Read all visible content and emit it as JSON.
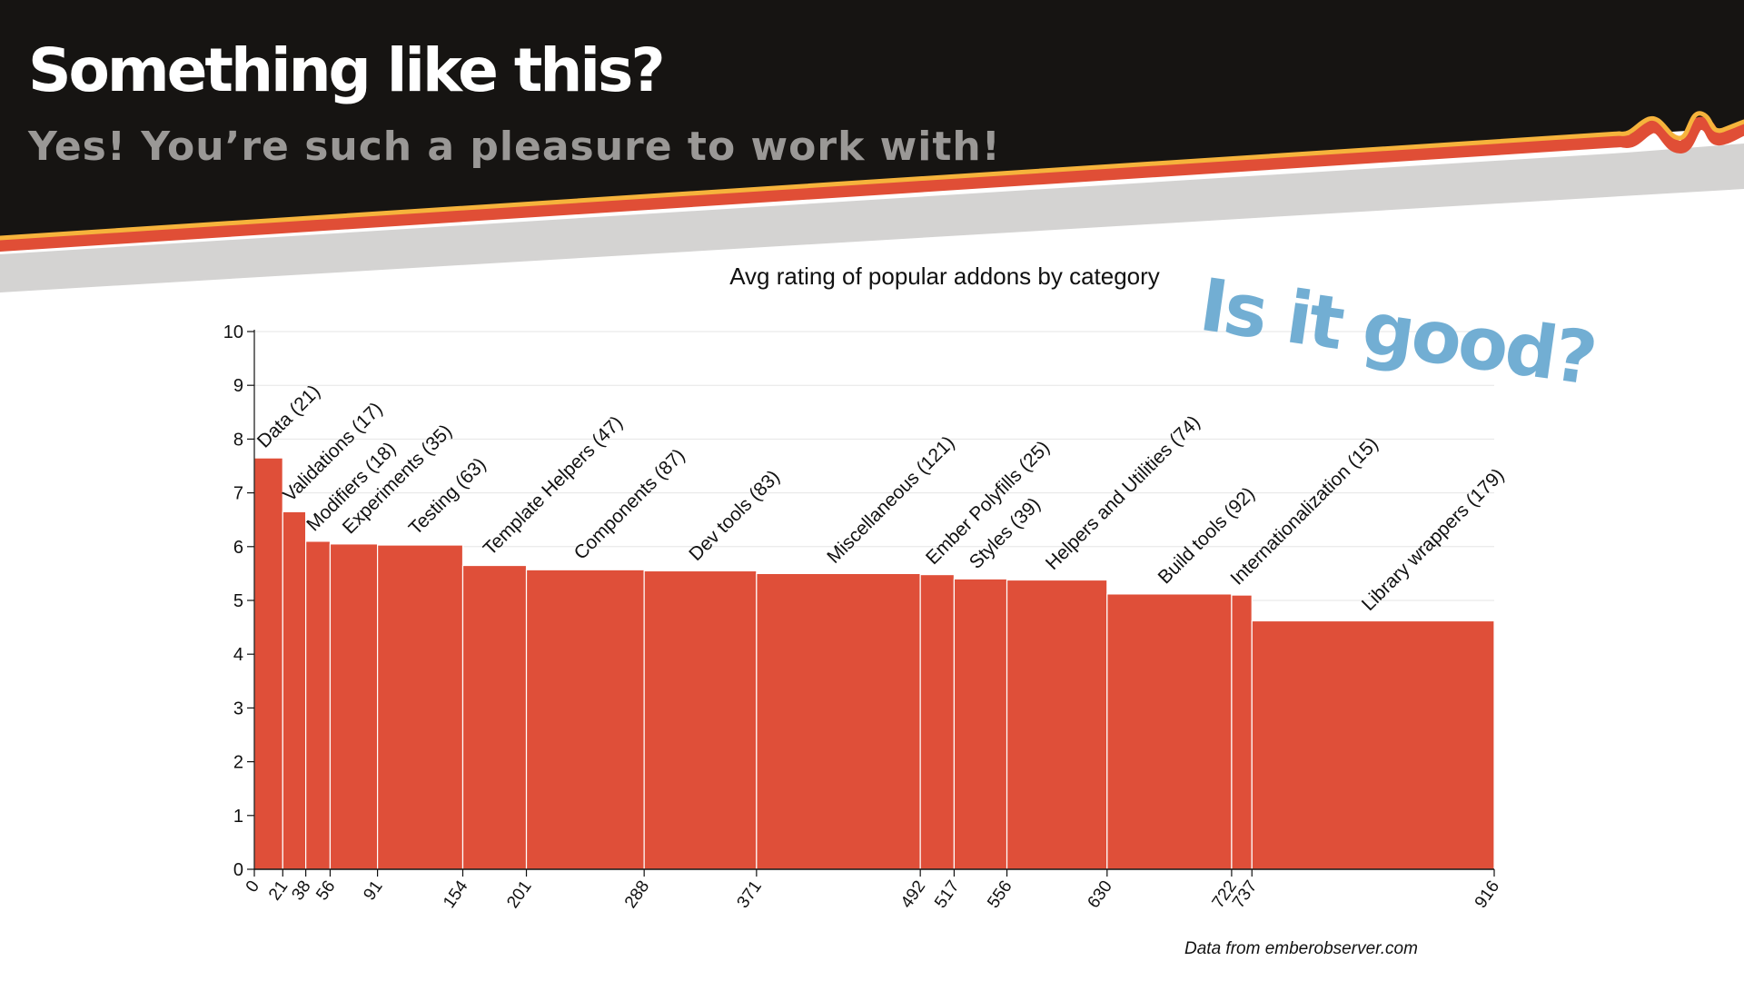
{
  "slide": {
    "title": "Something like this?",
    "subtitle": "Yes! You’re such a pleasure to work with!",
    "callout": "Is it good?",
    "source_note": "Data from emberobserver.com"
  },
  "colors": {
    "banner": "#161412",
    "stripe_red": "#e04e36",
    "stripe_yellow": "#f6b33c",
    "stripe_gray": "#d4d3d2",
    "bar_fill": "#df4f39",
    "callout": "#72aed3",
    "subtitle": "#9a9896"
  },
  "chart_data": {
    "type": "bar",
    "variant": "variable-width",
    "title": "Avg rating of popular addons by category",
    "xlabel": "",
    "ylabel": "",
    "ylim": [
      0,
      10
    ],
    "y_ticks": [
      "0",
      "1",
      "2",
      "3",
      "4",
      "5",
      "6",
      "7",
      "8",
      "9",
      "10"
    ],
    "x_ticks": [
      "0",
      "21",
      "38",
      "56",
      "91",
      "154",
      "201",
      "288",
      "371",
      "492",
      "517",
      "556",
      "630",
      "722",
      "737",
      "916"
    ],
    "grid": true,
    "bars": [
      {
        "label": "Data (21)",
        "start": 0,
        "end": 21,
        "value": 7.65
      },
      {
        "label": "Validations (17)",
        "start": 21,
        "end": 38,
        "value": 6.65
      },
      {
        "label": "Modifiers (18)",
        "start": 38,
        "end": 56,
        "value": 6.1
      },
      {
        "label": "Experiments (35)",
        "start": 56,
        "end": 91,
        "value": 6.05
      },
      {
        "label": "Testing (63)",
        "start": 91,
        "end": 154,
        "value": 6.03
      },
      {
        "label": "Template Helpers (47)",
        "start": 154,
        "end": 201,
        "value": 5.65
      },
      {
        "label": "Components (87)",
        "start": 201,
        "end": 288,
        "value": 5.57
      },
      {
        "label": "Dev tools (83)",
        "start": 288,
        "end": 371,
        "value": 5.55
      },
      {
        "label": "Miscellaneous (121)",
        "start": 371,
        "end": 492,
        "value": 5.5
      },
      {
        "label": "Ember Polyfills (25)",
        "start": 492,
        "end": 517,
        "value": 5.48
      },
      {
        "label": "Styles (39)",
        "start": 517,
        "end": 556,
        "value": 5.4
      },
      {
        "label": "Helpers and Utilities (74)",
        "start": 556,
        "end": 630,
        "value": 5.38
      },
      {
        "label": "Build tools (92)",
        "start": 630,
        "end": 722,
        "value": 5.12
      },
      {
        "label": "Internationalization (15)",
        "start": 722,
        "end": 737,
        "value": 5.1
      },
      {
        "label": "Library wrappers (179)",
        "start": 737,
        "end": 916,
        "value": 4.62
      }
    ]
  }
}
